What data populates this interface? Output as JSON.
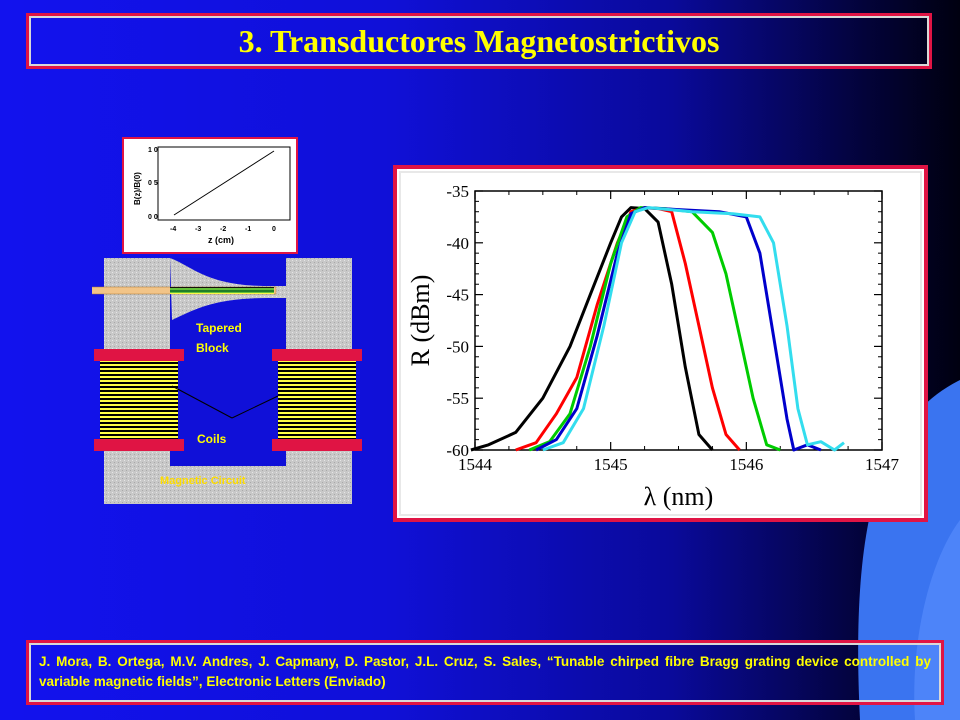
{
  "slide": {
    "title": "3. Transductores Magnetostrictivos",
    "citation": "J. Mora, B. Ortega, M.V. Andres, J. Capmany, D. Pastor, J.L. Cruz, S. Sales, “Tunable chirped fibre Bragg grating device controlled by variable magnetic fields”, Electronic Letters (Enviado)"
  },
  "colors": {
    "accent_border": "#e01444",
    "title_text": "#ffff00",
    "background_blue": "#1010d8",
    "swoosh": "#3a74f0"
  },
  "device": {
    "label_tapered_1": "Tapered",
    "label_tapered_2": "Block",
    "label_coils": "Coils",
    "label_circuit": "Magnetic Circuit"
  },
  "inset_chart": {
    "ylabel": "B(z)/B(0)",
    "xlabel": "z (cm)",
    "y_ticks": [
      "1 0",
      "0 5",
      "0 0"
    ],
    "x_ticks": [
      "-4",
      "-3",
      "-2",
      "-1",
      "0"
    ]
  },
  "chart_data": {
    "type": "line",
    "xlabel": "λ (nm)",
    "ylabel": "R (dBm)",
    "xlim": [
      1544,
      1547
    ],
    "ylim": [
      -60,
      -35
    ],
    "x_ticks": [
      "1544",
      "1545",
      "1546",
      "1547"
    ],
    "y_ticks": [
      "-35",
      "-40",
      "-45",
      "-50",
      "-55",
      "-60"
    ],
    "series": [
      {
        "color": "#000000",
        "x": [
          1543.97,
          1544.1,
          1544.3,
          1544.5,
          1544.7,
          1544.85,
          1545.0,
          1545.08,
          1545.15,
          1545.25,
          1545.35,
          1545.45,
          1545.55,
          1545.65,
          1545.75
        ],
        "y": [
          -60,
          -59.5,
          -58.3,
          -55,
          -50,
          -45,
          -40,
          -37.5,
          -36.6,
          -36.7,
          -38,
          -44,
          -52,
          -58.5,
          -60
        ]
      },
      {
        "color": "#ff0000",
        "x": [
          1544.3,
          1544.45,
          1544.6,
          1544.75,
          1544.9,
          1545.05,
          1545.15,
          1545.25,
          1545.35,
          1545.45,
          1545.55,
          1545.65,
          1545.75,
          1545.85,
          1545.95
        ],
        "y": [
          -60,
          -59.3,
          -56.5,
          -53,
          -46,
          -40,
          -37,
          -36.6,
          -36.7,
          -37,
          -42,
          -48,
          -54,
          -58.5,
          -60
        ]
      },
      {
        "color": "#00cc00",
        "x": [
          1544.4,
          1544.55,
          1544.7,
          1544.85,
          1545.0,
          1545.12,
          1545.22,
          1545.4,
          1545.6,
          1545.75,
          1545.85,
          1545.95,
          1546.05,
          1546.15,
          1546.25
        ],
        "y": [
          -60,
          -59.2,
          -56.5,
          -50,
          -42,
          -37.5,
          -36.6,
          -36.7,
          -37,
          -39,
          -43,
          -49,
          -55,
          -59.5,
          -60
        ]
      },
      {
        "color": "#0000cc",
        "x": [
          1544.45,
          1544.6,
          1544.75,
          1544.9,
          1545.05,
          1545.15,
          1545.25,
          1545.5,
          1545.8,
          1546.0,
          1546.1,
          1546.2,
          1546.3,
          1546.35,
          1546.45,
          1546.55
        ],
        "y": [
          -60,
          -59,
          -56,
          -49,
          -41,
          -37.2,
          -36.6,
          -36.8,
          -37,
          -37.5,
          -41,
          -49,
          -57,
          -60,
          -59.5,
          -60
        ]
      },
      {
        "color": "#33ddee",
        "x": [
          1544.5,
          1544.65,
          1544.8,
          1544.95,
          1545.08,
          1545.18,
          1545.28,
          1545.6,
          1545.9,
          1546.1,
          1546.2,
          1546.3,
          1546.38,
          1546.45,
          1546.55,
          1546.65,
          1546.72
        ],
        "y": [
          -60,
          -59.3,
          -56,
          -48,
          -40,
          -37,
          -36.6,
          -37,
          -37.2,
          -37.5,
          -40,
          -48,
          -56,
          -59.5,
          -59.2,
          -60,
          -59.3
        ]
      }
    ]
  }
}
